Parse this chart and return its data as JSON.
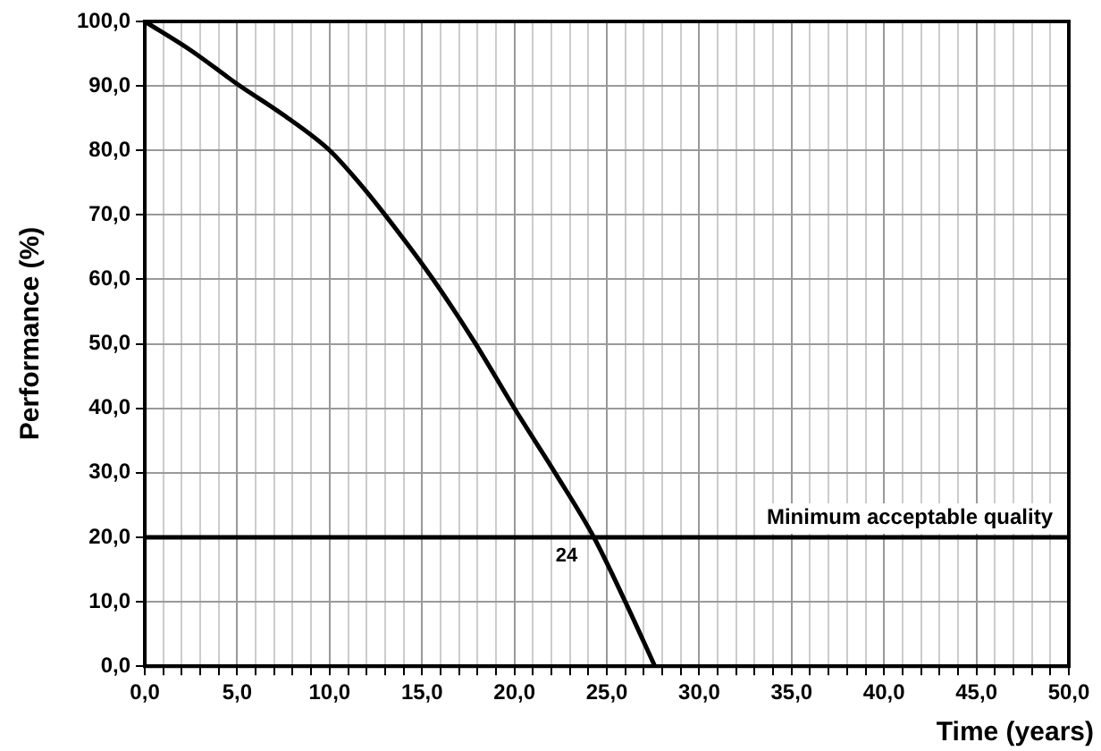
{
  "chart_data": {
    "type": "line",
    "xlabel": "Time (years)",
    "ylabel": "Performance (%)",
    "x": [
      0,
      2.5,
      5,
      7.5,
      10,
      11.5,
      13,
      15.6,
      17.9,
      20,
      22.2,
      24.3,
      26,
      27.6
    ],
    "series": [
      {
        "color": "#000000",
        "values": [
          100,
          95.5,
          90.3,
          85.5,
          80,
          75.3,
          70,
          60,
          50,
          40,
          30,
          20,
          10,
          0
        ]
      }
    ],
    "xlim": [
      0,
      50
    ],
    "ylim": [
      0,
      100
    ],
    "xticks": [
      {
        "value": 0,
        "label": "0,0"
      },
      {
        "value": 1,
        "label": null
      },
      {
        "value": 2,
        "label": null
      },
      {
        "value": 3,
        "label": null
      },
      {
        "value": 4,
        "label": null
      },
      {
        "value": 5,
        "label": "5,0"
      },
      {
        "value": 6,
        "label": null
      },
      {
        "value": 7,
        "label": null
      },
      {
        "value": 8,
        "label": null
      },
      {
        "value": 9,
        "label": null
      },
      {
        "value": 10,
        "label": "10,0"
      },
      {
        "value": 11,
        "label": null
      },
      {
        "value": 12,
        "label": null
      },
      {
        "value": 13,
        "label": null
      },
      {
        "value": 14,
        "label": null
      },
      {
        "value": 15,
        "label": "15,0"
      },
      {
        "value": 16,
        "label": null
      },
      {
        "value": 17,
        "label": null
      },
      {
        "value": 18,
        "label": null
      },
      {
        "value": 19,
        "label": null
      },
      {
        "value": 20,
        "label": "20,0"
      },
      {
        "value": 21,
        "label": null
      },
      {
        "value": 22,
        "label": null
      },
      {
        "value": 23,
        "label": null
      },
      {
        "value": 24,
        "label": null
      },
      {
        "value": 25,
        "label": "25,0"
      },
      {
        "value": 26,
        "label": null
      },
      {
        "value": 27,
        "label": null
      },
      {
        "value": 28,
        "label": null
      },
      {
        "value": 29,
        "label": null
      },
      {
        "value": 30,
        "label": "30,0"
      },
      {
        "value": 31,
        "label": null
      },
      {
        "value": 32,
        "label": null
      },
      {
        "value": 33,
        "label": null
      },
      {
        "value": 34,
        "label": null
      },
      {
        "value": 35,
        "label": "35,0"
      },
      {
        "value": 36,
        "label": null
      },
      {
        "value": 37,
        "label": null
      },
      {
        "value": 38,
        "label": null
      },
      {
        "value": 39,
        "label": null
      },
      {
        "value": 40,
        "label": "40,0"
      },
      {
        "value": 41,
        "label": null
      },
      {
        "value": 42,
        "label": null
      },
      {
        "value": 43,
        "label": null
      },
      {
        "value": 44,
        "label": null
      },
      {
        "value": 45,
        "label": "45,0"
      },
      {
        "value": 46,
        "label": null
      },
      {
        "value": 47,
        "label": null
      },
      {
        "value": 48,
        "label": null
      },
      {
        "value": 49,
        "label": null
      },
      {
        "value": 50,
        "label": "50,0"
      }
    ],
    "yticks": [
      {
        "value": 0,
        "label": "0,0"
      },
      {
        "value": 10,
        "label": "10,0"
      },
      {
        "value": 20,
        "label": "20,0"
      },
      {
        "value": 30,
        "label": "30,0"
      },
      {
        "value": 40,
        "label": "40,0"
      },
      {
        "value": 50,
        "label": "50,0"
      },
      {
        "value": 60,
        "label": "60,0"
      },
      {
        "value": 70,
        "label": "70,0"
      },
      {
        "value": 80,
        "label": "80,0"
      },
      {
        "value": 90,
        "label": "90,0"
      },
      {
        "value": 100,
        "label": "100,0"
      }
    ],
    "grid": true,
    "legend": false,
    "marker": "none",
    "line_style": "solid",
    "ref_lines": [
      {
        "axis": "y",
        "value": 20,
        "label": "Minimum acceptable quality",
        "color": "#000000"
      }
    ],
    "annotations": [
      {
        "text": "24",
        "x": 24,
        "y": 20
      }
    ]
  }
}
